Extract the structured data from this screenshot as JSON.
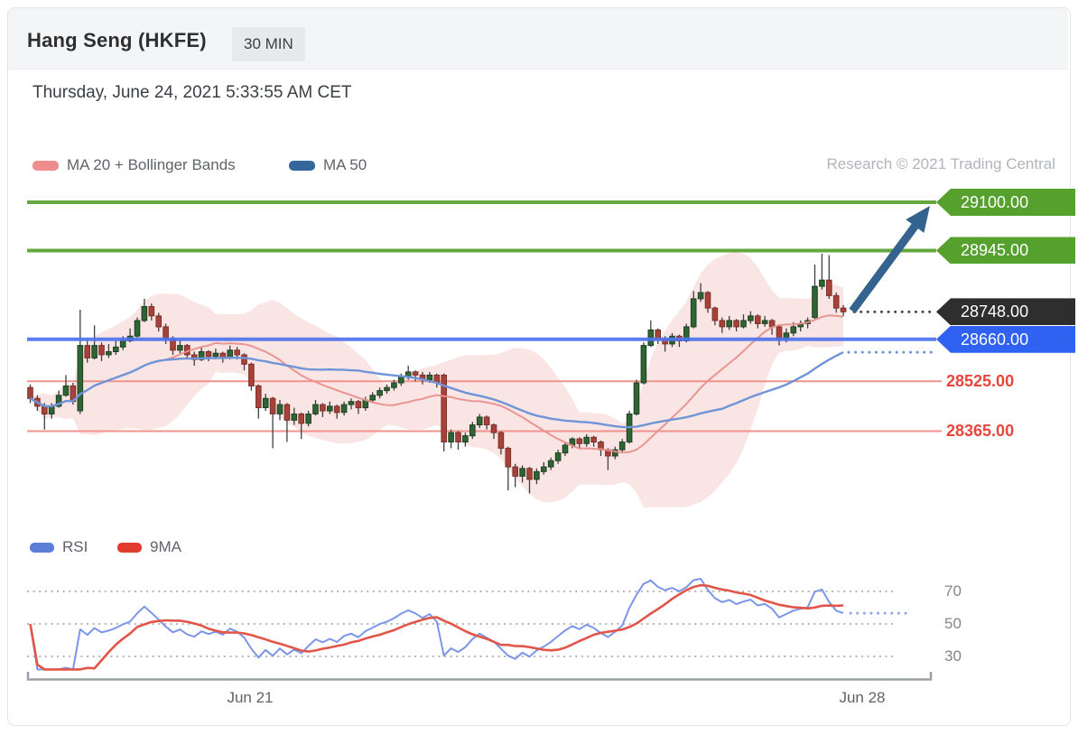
{
  "header": {
    "title": "Hang Seng (HKFE)",
    "timeframe_badge": "30 MIN"
  },
  "date_line": "Thursday, June 24, 2021 5:33:55 AM CET",
  "watermark": "Research © 2021 Trading Central",
  "main_legend": {
    "items": [
      {
        "label": "MA 20 + Bollinger Bands",
        "swatch_color": "#ef8c8c"
      },
      {
        "label": "MA 50",
        "swatch_color": "#34689d"
      }
    ]
  },
  "rsi_legend": {
    "items": [
      {
        "label": "RSI",
        "swatch_color": "#5b7fd9"
      },
      {
        "label": "9MA",
        "swatch_color": "#e23b30"
      }
    ]
  },
  "chart_data": {
    "type": "candlestick",
    "title": "Hang Seng (HKFE) 30 MIN",
    "interval": "30 MIN",
    "last_price": 28748.0,
    "y_axis": {
      "min": 28150,
      "max": 29150,
      "visible_level_labels": [
        "29100.00",
        "28945.00",
        "28748.00",
        "28660.00",
        "28525.00",
        "28365.00"
      ]
    },
    "levels": [
      {
        "value": 29100.0,
        "label": "29100.00",
        "kind": "resistance",
        "line_style": "solid",
        "line_width": 4,
        "line_color": "#56a02e",
        "badge_color": "#56a02e"
      },
      {
        "value": 28945.0,
        "label": "28945.00",
        "kind": "resistance",
        "line_style": "solid",
        "line_width": 4,
        "line_color": "#56a02e",
        "badge_color": "#56a02e"
      },
      {
        "value": 28748.0,
        "label": "28748.00",
        "kind": "last_price",
        "line_style": "dotted",
        "line_color": "#4a4a4a",
        "badge_color": "#2e2e2e"
      },
      {
        "value": 28660.0,
        "label": "28660.00",
        "kind": "support",
        "line_style": "solid",
        "line_width": 4,
        "line_color": "#4f74ee",
        "badge_color": "#2f62f0"
      },
      {
        "value": 28525.0,
        "label": "28525.00",
        "kind": "support",
        "line_style": "solid",
        "line_width": 2,
        "line_color": "#f0938d",
        "badge_color": null,
        "text_color": "#e8453c"
      },
      {
        "value": 28365.0,
        "label": "28365.00",
        "kind": "support",
        "line_style": "solid",
        "line_width": 2,
        "line_color": "#f0938d",
        "badge_color": null,
        "text_color": "#e8453c"
      }
    ],
    "projection_arrow": {
      "from_price": 28748.0,
      "to_price": 29100.0,
      "direction": "up",
      "color": "#35638f"
    },
    "indicators_main": [
      "MA 20 + Bollinger Bands",
      "MA 50"
    ],
    "rsi_pane": {
      "indicators": [
        "RSI",
        "9MA"
      ],
      "gridlines": [
        70,
        50,
        30
      ]
    },
    "x_ticks": [
      {
        "label": "Jun 21"
      },
      {
        "label": "Jun 28"
      }
    ],
    "style": {
      "bollinger_fill": "#f0a8a8",
      "ma20": "#e8908c",
      "ma50": "#7094d8",
      "candle_up": "#2f6433",
      "candle_up_border": "#1d4022",
      "candle_down": "#a7423a",
      "candle_down_border": "#7d2f28",
      "wick": "#3f3f3f",
      "rsi": "#7b96e8",
      "rsi_ma": "#e2564a",
      "grid_dots": "#b4b4b4",
      "axis": "#9aa0a6"
    },
    "candles": [
      [
        28505,
        28515,
        28455,
        28470
      ],
      [
        28470,
        28480,
        28430,
        28445
      ],
      [
        28445,
        28455,
        28370,
        28420
      ],
      [
        28420,
        28455,
        28405,
        28445
      ],
      [
        28445,
        28495,
        28440,
        28480
      ],
      [
        28480,
        28545,
        28475,
        28510
      ],
      [
        28510,
        28520,
        28450,
        28460
      ],
      [
        28430,
        28755,
        28420,
        28640
      ],
      [
        28640,
        28660,
        28585,
        28600
      ],
      [
        28600,
        28705,
        28595,
        28640
      ],
      [
        28640,
        28650,
        28590,
        28610
      ],
      [
        28610,
        28645,
        28600,
        28620
      ],
      [
        28620,
        28655,
        28610,
        28635
      ],
      [
        28635,
        28670,
        28625,
        28655
      ],
      [
        28655,
        28695,
        28650,
        28670
      ],
      [
        28670,
        28730,
        28665,
        28720
      ],
      [
        28720,
        28790,
        28715,
        28765
      ],
      [
        28765,
        28775,
        28720,
        28735
      ],
      [
        28735,
        28745,
        28685,
        28700
      ],
      [
        28700,
        28710,
        28645,
        28660
      ],
      [
        28660,
        28670,
        28610,
        28625
      ],
      [
        28625,
        28655,
        28615,
        28640
      ],
      [
        28640,
        28645,
        28595,
        28610
      ],
      [
        28610,
        28620,
        28575,
        28595
      ],
      [
        28595,
        28635,
        28590,
        28620
      ],
      [
        28620,
        28625,
        28590,
        28605
      ],
      [
        28605,
        28630,
        28595,
        28615
      ],
      [
        28615,
        28620,
        28585,
        28600
      ],
      [
        28600,
        28640,
        28595,
        28625
      ],
      [
        28625,
        28635,
        28595,
        28610
      ],
      [
        28610,
        28615,
        28560,
        28580
      ],
      [
        28580,
        28585,
        28495,
        28510
      ],
      [
        28510,
        28515,
        28405,
        28440
      ],
      [
        28440,
        28485,
        28430,
        28470
      ],
      [
        28470,
        28475,
        28310,
        28420
      ],
      [
        28420,
        28465,
        28400,
        28450
      ],
      [
        28450,
        28455,
        28330,
        28400
      ],
      [
        28400,
        28440,
        28385,
        28420
      ],
      [
        28420,
        28425,
        28340,
        28390
      ],
      [
        28390,
        28430,
        28380,
        28420
      ],
      [
        28420,
        28465,
        28415,
        28450
      ],
      [
        28450,
        28455,
        28410,
        28430
      ],
      [
        28430,
        28460,
        28420,
        28445
      ],
      [
        28445,
        28450,
        28405,
        28425
      ],
      [
        28425,
        28460,
        28415,
        28450
      ],
      [
        28450,
        28470,
        28435,
        28460
      ],
      [
        28460,
        28465,
        28420,
        28440
      ],
      [
        28440,
        28475,
        28430,
        28465
      ],
      [
        28465,
        28490,
        28455,
        28480
      ],
      [
        28480,
        28505,
        28470,
        28495
      ],
      [
        28495,
        28515,
        28485,
        28505
      ],
      [
        28505,
        28530,
        28495,
        28520
      ],
      [
        28520,
        28550,
        28510,
        28540
      ],
      [
        28540,
        28575,
        28530,
        28555
      ],
      [
        28555,
        28560,
        28525,
        28545
      ],
      [
        28545,
        28555,
        28515,
        28530
      ],
      [
        28530,
        28555,
        28520,
        28545
      ],
      [
        28545,
        28550,
        28505,
        28520
      ],
      [
        28545,
        28550,
        28300,
        28330
      ],
      [
        28330,
        28370,
        28310,
        28360
      ],
      [
        28360,
        28365,
        28305,
        28330
      ],
      [
        28330,
        28360,
        28315,
        28350
      ],
      [
        28350,
        28395,
        28340,
        28385
      ],
      [
        28385,
        28420,
        28375,
        28410
      ],
      [
        28410,
        28415,
        28370,
        28385
      ],
      [
        28385,
        28390,
        28340,
        28360
      ],
      [
        28360,
        28365,
        28290,
        28310
      ],
      [
        28310,
        28315,
        28175,
        28250
      ],
      [
        28250,
        28260,
        28185,
        28220
      ],
      [
        28220,
        28255,
        28200,
        28245
      ],
      [
        28245,
        28250,
        28165,
        28210
      ],
      [
        28210,
        28245,
        28195,
        28235
      ],
      [
        28235,
        28265,
        28225,
        28250
      ],
      [
        28250,
        28280,
        28240,
        28270
      ],
      [
        28270,
        28305,
        28260,
        28295
      ],
      [
        28295,
        28330,
        28285,
        28320
      ],
      [
        28320,
        28345,
        28310,
        28340
      ],
      [
        28340,
        28345,
        28310,
        28325
      ],
      [
        28325,
        28355,
        28315,
        28345
      ],
      [
        28345,
        28350,
        28315,
        28330
      ],
      [
        28330,
        28335,
        28285,
        28305
      ],
      [
        28305,
        28310,
        28240,
        28285
      ],
      [
        28285,
        28315,
        28275,
        28305
      ],
      [
        28305,
        28340,
        28295,
        28330
      ],
      [
        28330,
        28430,
        28325,
        28420
      ],
      [
        28420,
        28530,
        28415,
        28520
      ],
      [
        28520,
        28650,
        28515,
        28640
      ],
      [
        28640,
        28720,
        28635,
        28690
      ],
      [
        28690,
        28695,
        28645,
        28660
      ],
      [
        28660,
        28670,
        28620,
        28645
      ],
      [
        28645,
        28680,
        28635,
        28670
      ],
      [
        28670,
        28675,
        28635,
        28655
      ],
      [
        28655,
        28710,
        28650,
        28700
      ],
      [
        28700,
        28815,
        28695,
        28790
      ],
      [
        28790,
        28840,
        28780,
        28810
      ],
      [
        28810,
        28815,
        28745,
        28760
      ],
      [
        28760,
        28765,
        28705,
        28720
      ],
      [
        28720,
        28730,
        28680,
        28700
      ],
      [
        28700,
        28735,
        28690,
        28720
      ],
      [
        28720,
        28725,
        28685,
        28700
      ],
      [
        28700,
        28740,
        28695,
        28720
      ],
      [
        28720,
        28750,
        28710,
        28735
      ],
      [
        28735,
        28740,
        28695,
        28710
      ],
      [
        28710,
        28735,
        28700,
        28720
      ],
      [
        28720,
        28725,
        28675,
        28700
      ],
      [
        28700,
        28705,
        28640,
        28660
      ],
      [
        28660,
        28695,
        28650,
        28680
      ],
      [
        28680,
        28715,
        28670,
        28700
      ],
      [
        28700,
        28720,
        28685,
        28710
      ],
      [
        28710,
        28730,
        28695,
        28720
      ],
      [
        28730,
        28900,
        28725,
        28830
      ],
      [
        28830,
        28935,
        28820,
        28850
      ],
      [
        28850,
        28930,
        28790,
        28800
      ],
      [
        28800,
        28810,
        28745,
        28760
      ],
      [
        28760,
        28770,
        28735,
        28748
      ]
    ]
  }
}
